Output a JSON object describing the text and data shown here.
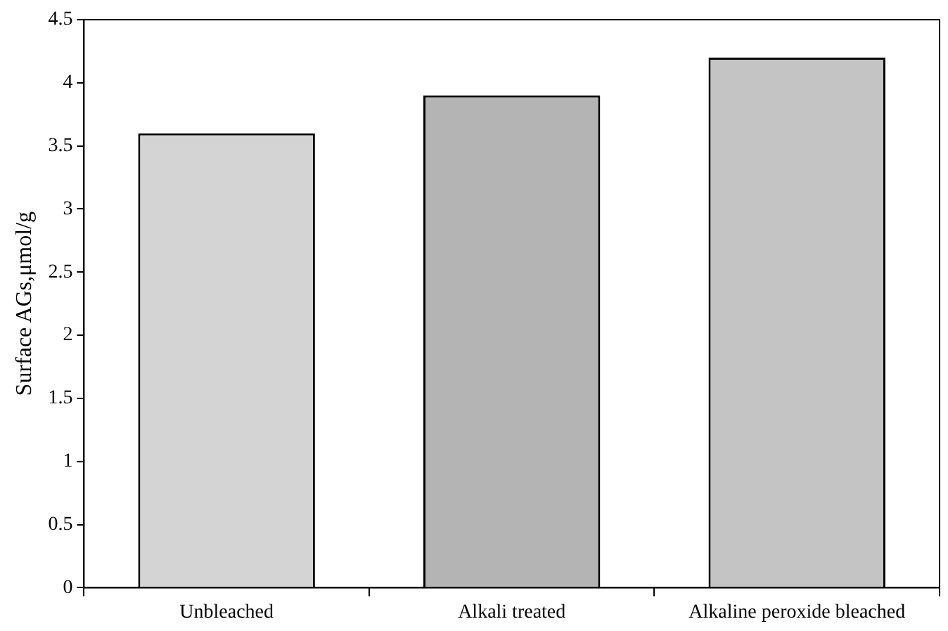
{
  "chart_data": {
    "type": "bar",
    "ylabel": "Surface AGs,μmol/g",
    "categories": [
      "Unbleached",
      "Alkali treated",
      "Alkaline peroxide bleached"
    ],
    "values": [
      3.6,
      3.9,
      4.2
    ],
    "colors": [
      "#d4d4d4",
      "#b4b4b4",
      "#c4c4c4"
    ],
    "ylim": [
      0,
      4.5
    ],
    "yticks": [
      0,
      0.5,
      1,
      1.5,
      2,
      2.5,
      3,
      3.5,
      4,
      4.5
    ],
    "grid": false,
    "legend": false
  }
}
